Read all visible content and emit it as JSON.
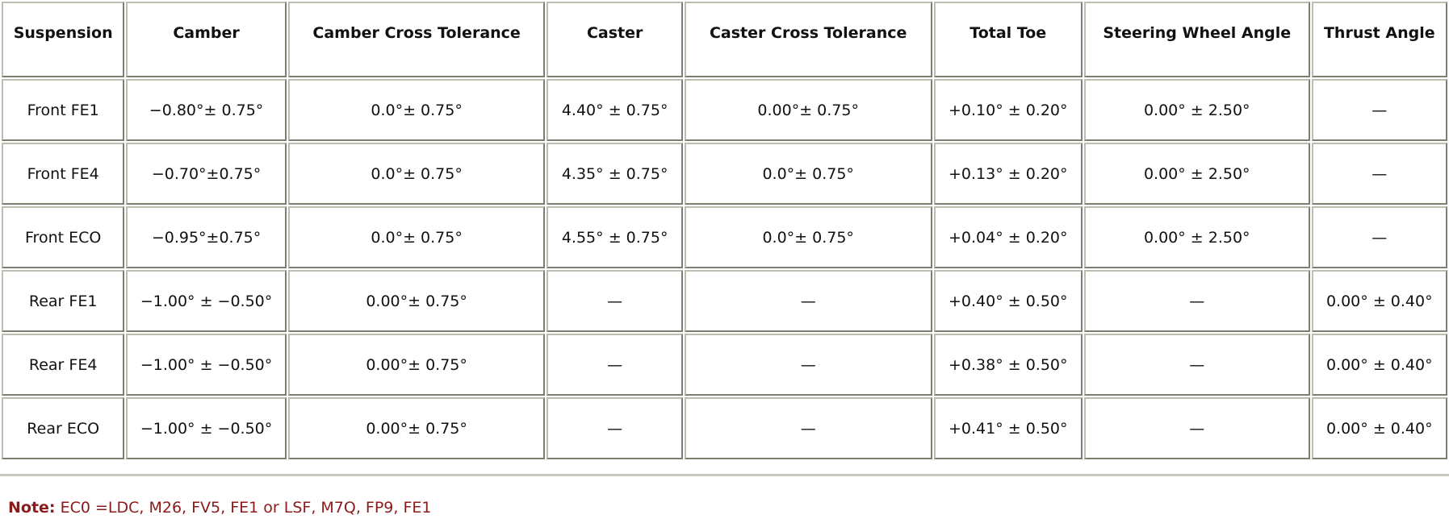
{
  "table": {
    "headers": [
      "Suspension",
      "Camber",
      "Camber Cross Tolerance",
      "Caster",
      "Caster Cross Tolerance",
      "Total Toe",
      "Steering Wheel Angle",
      "Thrust Angle"
    ],
    "rows": [
      [
        "Front FE1",
        "−0.80°± 0.75°",
        "0.0°± 0.75°",
        "4.40° ± 0.75°",
        "0.00°± 0.75°",
        "+0.10° ± 0.20°",
        "0.00° ± 2.50°",
        "—"
      ],
      [
        "Front FE4",
        "−0.70°±0.75°",
        "0.0°± 0.75°",
        "4.35° ± 0.75°",
        "0.0°± 0.75°",
        "+0.13° ± 0.20°",
        "0.00° ± 2.50°",
        "—"
      ],
      [
        "Front ECO",
        "−0.95°±0.75°",
        "0.0°± 0.75°",
        "4.55° ± 0.75°",
        "0.0°± 0.75°",
        "+0.04° ± 0.20°",
        "0.00° ± 2.50°",
        "—"
      ],
      [
        "Rear FE1",
        "−1.00° ± −0.50°",
        "0.00°± 0.75°",
        "—",
        "—",
        "+0.40° ± 0.50°",
        "—",
        "0.00° ± 0.40°"
      ],
      [
        "Rear FE4",
        "−1.00° ± −0.50°",
        "0.00°± 0.75°",
        "—",
        "—",
        "+0.38° ± 0.50°",
        "—",
        "0.00° ± 0.40°"
      ],
      [
        "Rear ECO",
        "−1.00° ± −0.50°",
        "0.00°± 0.75°",
        "—",
        "—",
        "+0.41° ± 0.50°",
        "—",
        "0.00° ± 0.40°"
      ]
    ]
  },
  "note": {
    "label": "Note:",
    "text": "EC0 =LDC, M26, FV5, FE1 or LSF, M7Q, FP9, FE1"
  },
  "colors": {
    "note_text": "#8b1a1a",
    "cell_border_light": "#bdbdb0",
    "cell_border_dark": "#7d7d70"
  }
}
